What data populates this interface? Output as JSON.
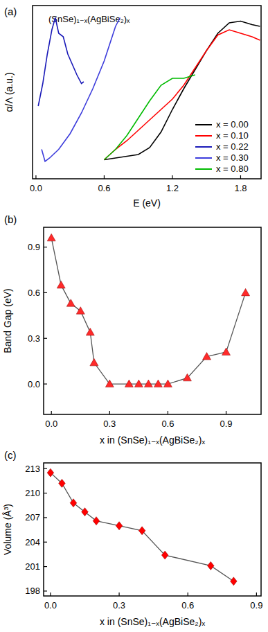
{
  "chart_data": [
    {
      "type": "line",
      "title": "(a)",
      "annotations": [
        "(SnSe)₁₋ₓ(AgBiSe₂)ₓ"
      ],
      "x_label": "E (eV)",
      "y_label": "α/Λ (a.u.)",
      "xlim": [
        -0.03,
        1.98
      ],
      "ylim": [
        0,
        1
      ],
      "xticks": [
        {
          "value": 0,
          "label": "0.0"
        },
        {
          "value": 0.6,
          "label": "0.6"
        },
        {
          "value": 1.2,
          "label": "1.2"
        },
        {
          "value": 1.8,
          "label": "1.8"
        }
      ],
      "tick_labels": "x",
      "legend": "lower right",
      "series": [
        {
          "name": "x = 0.00",
          "color": "#000000",
          "line_style": "solid",
          "x": [
            0.6,
            0.7,
            0.8,
            0.9,
            1.0,
            1.1,
            1.2,
            1.3,
            1.4,
            1.5,
            1.6,
            1.7,
            1.8,
            1.9,
            1.97
          ],
          "values": [
            0.11,
            0.12,
            0.13,
            0.14,
            0.18,
            0.27,
            0.4,
            0.52,
            0.63,
            0.74,
            0.84,
            0.9,
            0.91,
            0.89,
            0.88
          ]
        },
        {
          "name": "x = 0.10",
          "color": "#ff0000",
          "line_style": "solid",
          "x": [
            0.6,
            0.7,
            0.8,
            0.9,
            1.0,
            1.1,
            1.2,
            1.3,
            1.4,
            1.5,
            1.6,
            1.7,
            1.8,
            1.9,
            1.97
          ],
          "values": [
            0.11,
            0.17,
            0.22,
            0.28,
            0.34,
            0.4,
            0.46,
            0.54,
            0.64,
            0.74,
            0.83,
            0.86,
            0.84,
            0.82,
            0.8
          ]
        },
        {
          "name": "x = 0.22",
          "color": "#1a1ab8",
          "line_style": "solid",
          "x": [
            0.02,
            0.06,
            0.1,
            0.14,
            0.17,
            0.2,
            0.24,
            0.28,
            0.32,
            0.36,
            0.4,
            0.42
          ],
          "values": [
            0.42,
            0.55,
            0.72,
            0.86,
            0.93,
            0.84,
            0.82,
            0.72,
            0.66,
            0.6,
            0.55,
            0.56
          ]
        },
        {
          "name": "x = 0.30",
          "color": "#3c3cdc",
          "line_style": "solid",
          "x": [
            0.05,
            0.08,
            0.12,
            0.2,
            0.3,
            0.4,
            0.5,
            0.6,
            0.65,
            0.7,
            0.74
          ],
          "values": [
            0.17,
            0.1,
            0.12,
            0.17,
            0.26,
            0.38,
            0.52,
            0.68,
            0.78,
            0.88,
            0.93
          ]
        },
        {
          "name": "x = 0.80",
          "color": "#00bb00",
          "line_style": "solid",
          "x": [
            0.6,
            0.7,
            0.8,
            0.9,
            1.0,
            1.1,
            1.2,
            1.3,
            1.4
          ],
          "values": [
            0.11,
            0.17,
            0.25,
            0.35,
            0.45,
            0.54,
            0.58,
            0.58,
            0.6
          ]
        }
      ]
    },
    {
      "type": "line",
      "title": "(b)",
      "x_label": "x in (SnSe)₁₋ₓ(AgBiSe₂)ₓ",
      "y_label": "Band Gap (eV)",
      "xlim": [
        -0.04,
        1.08
      ],
      "ylim": [
        -0.2,
        1.03
      ],
      "xticks": [
        {
          "value": 0,
          "label": "0.0"
        },
        {
          "value": 0.3,
          "label": "0.3"
        },
        {
          "value": 0.6,
          "label": "0.6"
        },
        {
          "value": 0.9,
          "label": "0.9"
        }
      ],
      "yticks": [
        {
          "value": 0,
          "label": "0.0"
        },
        {
          "value": 0.3,
          "label": "0.3"
        },
        {
          "value": 0.6,
          "label": "0.6"
        },
        {
          "value": 0.9,
          "label": "0.9"
        }
      ],
      "color": "#ff2a2a",
      "marker": "triangle",
      "line_style": "solid",
      "x": [
        0,
        0.05,
        0.1,
        0.15,
        0.2,
        0.22,
        0.3,
        0.4,
        0.45,
        0.5,
        0.55,
        0.6,
        0.7,
        0.8,
        0.9,
        1.0
      ],
      "values": [
        0.96,
        0.65,
        0.53,
        0.48,
        0.34,
        0.14,
        0,
        0,
        0,
        0,
        0,
        0,
        0.04,
        0.18,
        0.21,
        0.6
      ]
    },
    {
      "type": "line",
      "title": "(c)",
      "x_label": "x in (SnSe)₁₋ₓ(AgBiSe₂)ₓ",
      "y_label": "Volume (Å³)",
      "xlim": [
        -0.03,
        0.92
      ],
      "ylim": [
        197.4,
        213.7
      ],
      "xticks": [
        {
          "value": 0,
          "label": "0.0"
        },
        {
          "value": 0.3,
          "label": "0.3"
        },
        {
          "value": 0.6,
          "label": "0.6"
        },
        {
          "value": 0.9,
          "label": "0.9"
        }
      ],
      "yticks": [
        198,
        201,
        204,
        207,
        210,
        213
      ],
      "color": "#ff0000",
      "marker": "diamond",
      "line_style": "solid",
      "x": [
        0,
        0.05,
        0.1,
        0.15,
        0.2,
        0.3,
        0.4,
        0.5,
        0.7,
        0.8
      ],
      "values": [
        212.5,
        211.2,
        208.8,
        207.7,
        206.6,
        206.0,
        205.4,
        202.4,
        201.1,
        199.2
      ]
    }
  ]
}
